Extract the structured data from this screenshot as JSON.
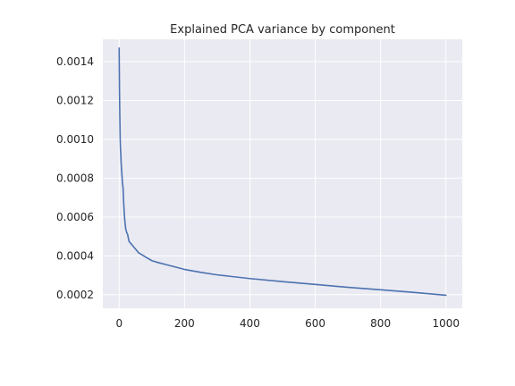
{
  "chart_data": {
    "type": "line",
    "title": "Explained PCA variance by component",
    "xlabel": "",
    "ylabel": "",
    "xlim": [
      -50,
      1050
    ],
    "ylim": [
      0.00013,
      0.001515
    ],
    "xticks": [
      0,
      200,
      400,
      600,
      800,
      1000
    ],
    "xtick_labels": [
      "0",
      "200",
      "400",
      "600",
      "800",
      "1000"
    ],
    "yticks": [
      0.0002,
      0.0004,
      0.0006,
      0.0008,
      0.001,
      0.0012,
      0.0014
    ],
    "ytick_labels": [
      "0.0002",
      "0.0004",
      "0.0006",
      "0.0008",
      "0.0010",
      "0.0012",
      "0.0014"
    ],
    "grid": true,
    "background": "#eaeaf2",
    "series": [
      {
        "color": "#4c72b0",
        "x": [
          0,
          1,
          2,
          3,
          4,
          5,
          6,
          8,
          10,
          12,
          14,
          16,
          18,
          20,
          23,
          26,
          30,
          35,
          40,
          50,
          60,
          70,
          80,
          100,
          120,
          150,
          200,
          250,
          300,
          400,
          500,
          600,
          700,
          800,
          900,
          1000
        ],
        "y": [
          0.00147,
          0.00125,
          0.00112,
          0.00101,
          0.00095,
          0.00093,
          0.00088,
          0.00083,
          0.00078,
          0.00075,
          0.00067,
          0.00061,
          0.00057,
          0.00054,
          0.00052,
          0.00051,
          0.000475,
          0.000465,
          0.000455,
          0.000435,
          0.000415,
          0.000405,
          0.000395,
          0.000375,
          0.000365,
          0.000352,
          0.00033,
          0.000315,
          0.000302,
          0.000283,
          0.000267,
          0.000253,
          0.000238,
          0.000225,
          0.000212,
          0.000197
        ]
      }
    ]
  }
}
